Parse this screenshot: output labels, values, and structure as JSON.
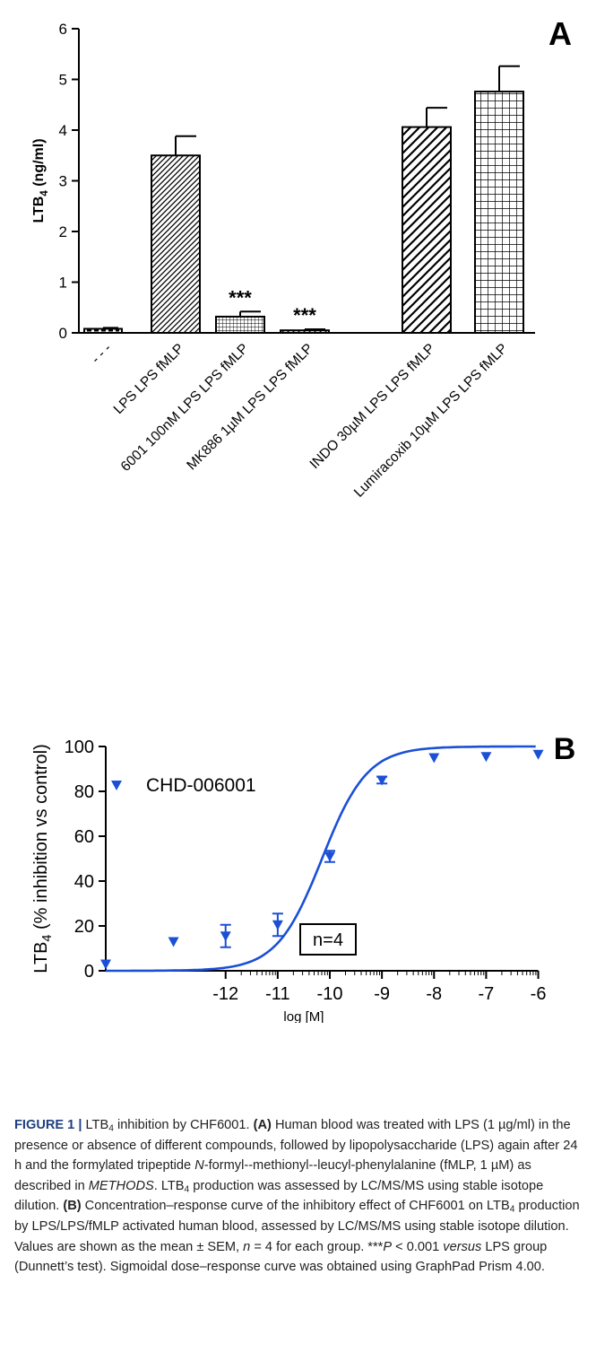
{
  "chart_data": [
    {
      "panel_label": "A",
      "type": "bar",
      "ylabel": "LTB4 (ng/ml)",
      "ylim": [
        0,
        6
      ],
      "yticks": [
        0,
        1,
        2,
        3,
        4,
        5,
        6
      ],
      "categories": [
        "- - -",
        "LPS  LPS  fMLP",
        "6001 100nM LPS LPS fMLP",
        "MK886 1µM  LPS LPS fMLP",
        "INDO 30µM  LPS  LPS fMLP",
        "Lumiracoxib 10µM LPS  LPS fMLP"
      ],
      "values": [
        0.08,
        3.5,
        0.32,
        0.05,
        4.06,
        4.76
      ],
      "errors": [
        0.02,
        0.38,
        0.1,
        0.02,
        0.38,
        0.5
      ],
      "patterns": [
        "solid",
        "diag-down",
        "grid-fine",
        "diag-up",
        "diag-down-wide",
        "grid"
      ],
      "annotations": [
        "",
        "",
        "***",
        "***",
        "",
        ""
      ]
    },
    {
      "panel_label": "B",
      "type": "scatter",
      "xlabel": "log [M]",
      "ylabel": "LTB4 (% inhibition vs control)",
      "ylim": [
        0,
        100
      ],
      "yticks": [
        0,
        20,
        40,
        60,
        80,
        100
      ],
      "xticks": [
        -12,
        -11,
        -10,
        -9,
        -8,
        -7,
        -6
      ],
      "xlim": [
        -14.3,
        -5.7
      ],
      "annotation": "n=4",
      "series": [
        {
          "name": "CHD-006001",
          "color": "#1a4fd6",
          "points": [
            {
              "x": -14.3,
              "y": 3,
              "err": 0
            },
            {
              "x": -13,
              "y": 13,
              "err": 0
            },
            {
              "x": -12,
              "y": 15.5,
              "err": 5
            },
            {
              "x": -11,
              "y": 20.5,
              "err": 5
            },
            {
              "x": -10,
              "y": 51,
              "err": 2.5
            },
            {
              "x": -9,
              "y": 85,
              "err": 1.5
            },
            {
              "x": -8,
              "y": 95,
              "err": 0
            },
            {
              "x": -7,
              "y": 95.5,
              "err": 0
            },
            {
              "x": -6,
              "y": 96.5,
              "err": 0
            }
          ],
          "fit": {
            "type": "sigmoidal",
            "bottom": 0,
            "top": 100,
            "log_ic50": -10.15,
            "hill": 1.0
          }
        }
      ]
    }
  ],
  "caption": {
    "lead": "FIGURE 1 |",
    "t1": " LTB",
    "s1": "4",
    "t2": " inhibition by CHF6001. ",
    "b1": "(A)",
    "t3": " Human blood was treated with LPS (1 µg/ml) in the presence or absence of different compounds, followed by lipopolysaccharide (LPS) again after 24 h and the formylated tripeptide ",
    "i1": "N",
    "t4": "-formyl--methionyl--leucyl-phenylalanine (fMLP, 1 µM) as described in ",
    "i2": "METHODS",
    "t5": ". LTB",
    "s2": "4",
    "t6": " production was assessed by LC/MS/MS using stable isotope dilution. ",
    "b2": "(B)",
    "t7": " Concentration–response curve of the inhibitory effect of CHF6001 on LTB",
    "s3": "4",
    "t8": " production by LPS/LPS/fMLP activated human blood, assessed by LC/MS/MS using stable isotope dilution. Values are shown as the mean ± SEM, ",
    "i3": "n",
    "t9": " = 4 for each group. ***",
    "i4": "P",
    "t10": " < 0.001 ",
    "i5": "versus",
    "t11": " LPS group (Dunnett’s test). Sigmoidal dose–response curve was obtained using GraphPad Prism 4.00."
  }
}
